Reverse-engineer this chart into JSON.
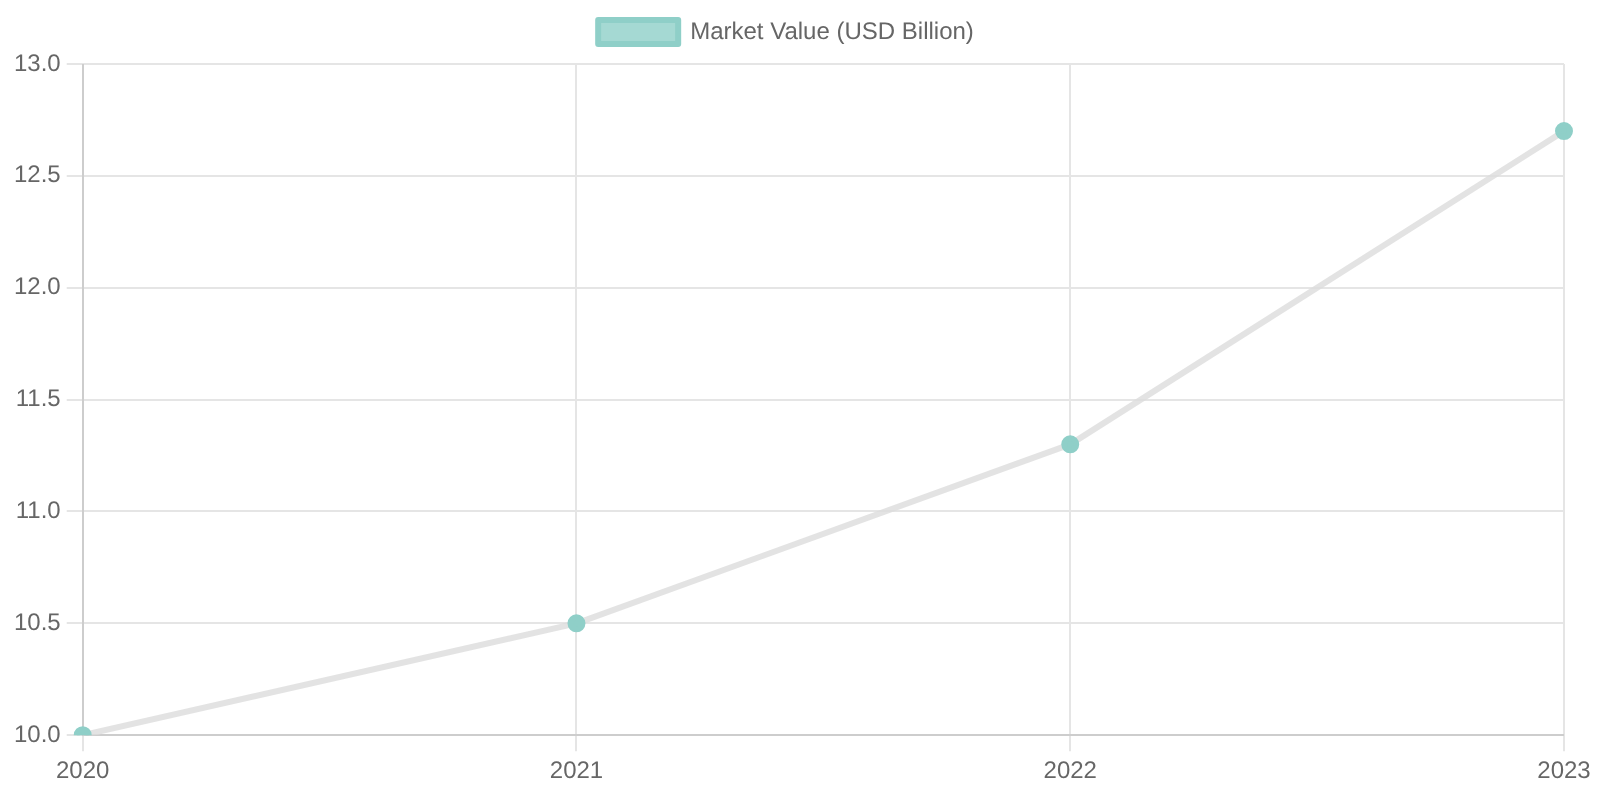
{
  "chart_data": {
    "type": "line",
    "categories": [
      "2020",
      "2021",
      "2022",
      "2023"
    ],
    "series": [
      {
        "name": "Market Value (USD Billion)",
        "color": "#8fcfc8",
        "values": [
          10.0,
          10.5,
          11.3,
          12.7
        ]
      }
    ],
    "ylim": [
      10,
      13
    ],
    "yticks": [
      {
        "value": 10,
        "label": "10.0"
      },
      {
        "value": 10.5,
        "label": "10.5"
      },
      {
        "value": 11,
        "label": "11.0"
      },
      {
        "value": 11.5,
        "label": "11.5"
      },
      {
        "value": 12,
        "label": "12.0"
      },
      {
        "value": 12.5,
        "label": "12.5"
      },
      {
        "value": 13,
        "label": "13.0"
      }
    ],
    "grid": true,
    "legend": "top",
    "marker": "circle"
  }
}
